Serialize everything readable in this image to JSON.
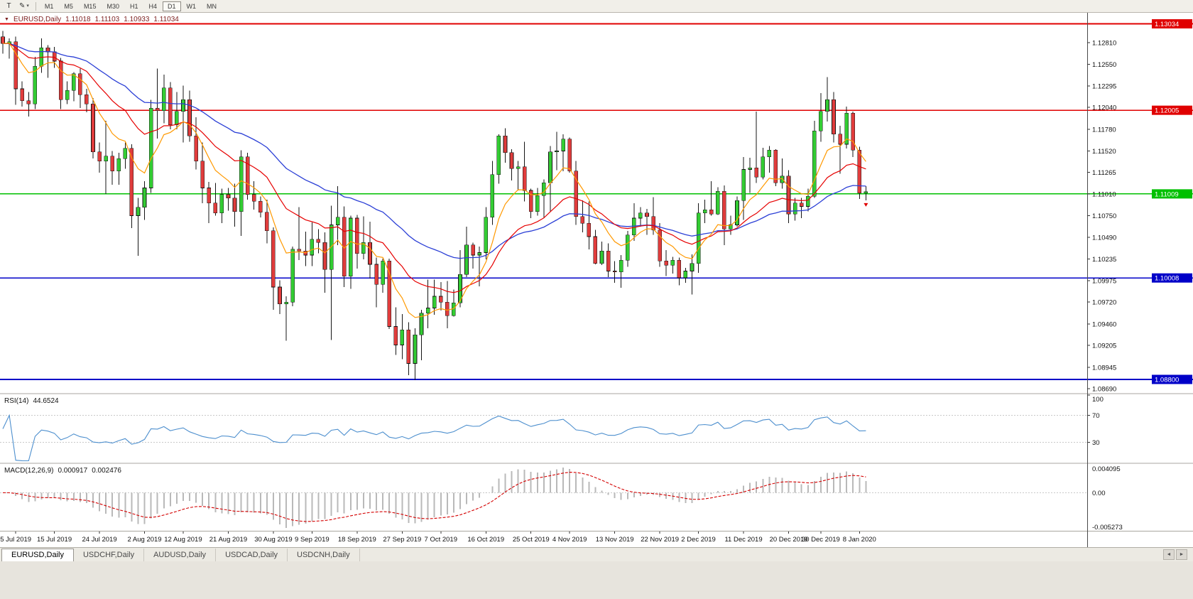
{
  "toolbar": {
    "tools": [
      {
        "name": "text-tool",
        "glyph": "T"
      },
      {
        "name": "draw-tool",
        "glyph": "✎"
      },
      {
        "name": "draw-tool-caret",
        "glyph": "▾"
      }
    ],
    "timeframes": [
      "M1",
      "M5",
      "M15",
      "M30",
      "H1",
      "H4",
      "D1",
      "W1",
      "MN"
    ],
    "active_timeframe": "D1"
  },
  "chart_data": {
    "type": "candlestick",
    "symbol": "EURUSD,Daily",
    "ohlc_display": {
      "open": "1.11018",
      "high": "1.11103",
      "low": "1.10933",
      "close": "1.11034"
    },
    "colors": {
      "up": "#33cc33",
      "down": "#e03c3c",
      "wick": "#151515",
      "ma_fast": "#ff9900",
      "ma_mid": "#e60000",
      "ma_slow": "#2b3fd6"
    },
    "ma_periods": {
      "fast": 8,
      "mid": 20,
      "slow": 40
    },
    "price_axis": {
      "top_price": 1.13157,
      "bottom_price": 1.08639,
      "ticks": [
        "1.12810",
        "1.12550",
        "1.12295",
        "1.12040",
        "1.11780",
        "1.11520",
        "1.11265",
        "1.11010",
        "1.10750",
        "1.10490",
        "1.10235",
        "1.09975",
        "1.09720",
        "1.09460",
        "1.09205",
        "1.08945",
        "1.08690"
      ]
    },
    "hlines": [
      {
        "price": 1.13034,
        "label": "1.13034",
        "color": "#e00000"
      },
      {
        "price": 1.12005,
        "label": "1.12005",
        "color": "#e00000"
      },
      {
        "price": 1.11009,
        "label": "1.11009",
        "color": "#00c000"
      },
      {
        "price": 1.10008,
        "label": "1.10008",
        "color": "#0000c8"
      },
      {
        "price": 1.088,
        "label": "1.08800",
        "color": "#0000c8"
      }
    ],
    "time_labels": [
      {
        "text": "5 Jul 2019",
        "bar": 2
      },
      {
        "text": "15 Jul 2019",
        "bar": 8
      },
      {
        "text": "24 Jul 2019",
        "bar": 15
      },
      {
        "text": "2 Aug 2019",
        "bar": 22
      },
      {
        "text": "12 Aug 2019",
        "bar": 28
      },
      {
        "text": "21 Aug 2019",
        "bar": 35
      },
      {
        "text": "30 Aug 2019",
        "bar": 42
      },
      {
        "text": "9 Sep 2019",
        "bar": 48
      },
      {
        "text": "18 Sep 2019",
        "bar": 55
      },
      {
        "text": "27 Sep 2019",
        "bar": 62
      },
      {
        "text": "7 Oct 2019",
        "bar": 68
      },
      {
        "text": "16 Oct 2019",
        "bar": 75
      },
      {
        "text": "25 Oct 2019",
        "bar": 82
      },
      {
        "text": "4 Nov 2019",
        "bar": 88
      },
      {
        "text": "13 Nov 2019",
        "bar": 95
      },
      {
        "text": "22 Nov 2019",
        "bar": 102
      },
      {
        "text": "2 Dec 2019",
        "bar": 108
      },
      {
        "text": "11 Dec 2019",
        "bar": 115
      },
      {
        "text": "20 Dec 2019",
        "bar": 122
      },
      {
        "text": "30 Dec 2019",
        "bar": 127
      },
      {
        "text": "8 Jan 2020",
        "bar": 133
      }
    ],
    "candles": [
      [
        1.1288,
        1.1295,
        1.1268,
        1.128
      ],
      [
        1.128,
        1.1286,
        1.1262,
        1.1282
      ],
      [
        1.1282,
        1.1288,
        1.1207,
        1.1226
      ],
      [
        1.1226,
        1.1235,
        1.1205,
        1.1212
      ],
      [
        1.1212,
        1.1222,
        1.1193,
        1.1208
      ],
      [
        1.1208,
        1.1264,
        1.1202,
        1.1253
      ],
      [
        1.1253,
        1.1286,
        1.1245,
        1.1275
      ],
      [
        1.1275,
        1.1278,
        1.1239,
        1.127
      ],
      [
        1.127,
        1.1276,
        1.1251,
        1.1259
      ],
      [
        1.1259,
        1.1263,
        1.1202,
        1.1213
      ],
      [
        1.1213,
        1.1235,
        1.1208,
        1.1224
      ],
      [
        1.1224,
        1.1246,
        1.1211,
        1.1244
      ],
      [
        1.1244,
        1.125,
        1.1203,
        1.1219
      ],
      [
        1.1219,
        1.1226,
        1.1198,
        1.1208
      ],
      [
        1.1208,
        1.1215,
        1.1143,
        1.1151
      ],
      [
        1.1151,
        1.1162,
        1.1126,
        1.114
      ],
      [
        1.114,
        1.1188,
        1.1101,
        1.1146
      ],
      [
        1.1146,
        1.1152,
        1.1112,
        1.1128
      ],
      [
        1.1128,
        1.115,
        1.1112,
        1.1143
      ],
      [
        1.1143,
        1.1162,
        1.1131,
        1.1155
      ],
      [
        1.1155,
        1.116,
        1.106,
        1.1075
      ],
      [
        1.1075,
        1.1096,
        1.1027,
        1.1085
      ],
      [
        1.1085,
        1.1116,
        1.107,
        1.1108
      ],
      [
        1.1108,
        1.1213,
        1.1102,
        1.1203
      ],
      [
        1.1203,
        1.125,
        1.1167,
        1.12
      ],
      [
        1.12,
        1.1243,
        1.1185,
        1.1227
      ],
      [
        1.1227,
        1.1234,
        1.1178,
        1.1183
      ],
      [
        1.1183,
        1.1222,
        1.1178,
        1.1199
      ],
      [
        1.1199,
        1.123,
        1.1162,
        1.1213
      ],
      [
        1.1213,
        1.1224,
        1.1163,
        1.117
      ],
      [
        1.117,
        1.1192,
        1.113,
        1.114
      ],
      [
        1.114,
        1.1162,
        1.109,
        1.1108
      ],
      [
        1.1108,
        1.1115,
        1.1066,
        1.109
      ],
      [
        1.109,
        1.1114,
        1.1075,
        1.1078
      ],
      [
        1.1078,
        1.1107,
        1.1066,
        1.11
      ],
      [
        1.11,
        1.1108,
        1.1081,
        1.1096
      ],
      [
        1.1096,
        1.1113,
        1.1062,
        1.108
      ],
      [
        1.108,
        1.1153,
        1.1051,
        1.1145
      ],
      [
        1.1145,
        1.115,
        1.1094,
        1.11
      ],
      [
        1.11,
        1.1116,
        1.1082,
        1.1092
      ],
      [
        1.1092,
        1.1098,
        1.1073,
        1.1079
      ],
      [
        1.1079,
        1.1094,
        1.1042,
        1.1057
      ],
      [
        1.1057,
        1.1061,
        1.0963,
        1.099
      ],
      [
        1.099,
        1.0998,
        1.0958,
        1.097
      ],
      [
        1.097,
        1.0979,
        1.0926,
        1.0972
      ],
      [
        1.0972,
        1.1038,
        1.0967,
        1.1035
      ],
      [
        1.1035,
        1.1085,
        1.1022,
        1.1033
      ],
      [
        1.1033,
        1.1056,
        1.1015,
        1.1028
      ],
      [
        1.1028,
        1.1067,
        1.1015,
        1.1047
      ],
      [
        1.1047,
        1.1059,
        1.103,
        1.1043
      ],
      [
        1.1043,
        1.1055,
        1.0983,
        1.1011
      ],
      [
        1.1011,
        1.1087,
        1.0927,
        1.1064
      ],
      [
        1.1064,
        1.111,
        1.104,
        1.1073
      ],
      [
        1.1073,
        1.1086,
        1.099,
        1.1003
      ],
      [
        1.1003,
        1.1075,
        1.0988,
        1.1072
      ],
      [
        1.1072,
        1.1076,
        1.1012,
        1.103
      ],
      [
        1.103,
        1.1074,
        1.1023,
        1.1043
      ],
      [
        1.1043,
        1.1068,
        1.1,
        1.1017
      ],
      [
        1.1017,
        1.1025,
        1.0966,
        1.0993
      ],
      [
        1.0993,
        1.1024,
        1.0983,
        1.1021
      ],
      [
        1.1021,
        1.1024,
        1.094,
        1.0943
      ],
      [
        1.0943,
        1.0966,
        1.0909,
        1.0921
      ],
      [
        1.0921,
        1.0958,
        1.0904,
        1.0939
      ],
      [
        1.0939,
        1.0948,
        1.0885,
        1.0899
      ],
      [
        1.0899,
        1.0941,
        1.0879,
        1.0933
      ],
      [
        1.0933,
        1.0963,
        1.0903,
        1.0959
      ],
      [
        1.0959,
        1.0999,
        1.0941,
        1.0965
      ],
      [
        1.0965,
        1.0999,
        1.0957,
        1.0979
      ],
      [
        1.0979,
        1.0996,
        1.0962,
        1.0972
      ],
      [
        1.0972,
        1.0997,
        1.0941,
        1.0956
      ],
      [
        1.0956,
        1.0987,
        1.0955,
        1.0971
      ],
      [
        1.0971,
        1.1034,
        1.0966,
        1.1005
      ],
      [
        1.1005,
        1.1062,
        1.1002,
        1.104
      ],
      [
        1.104,
        1.1043,
        1.1012,
        1.1028
      ],
      [
        1.1028,
        1.1038,
        1.0991,
        1.1031
      ],
      [
        1.1031,
        1.1085,
        1.1023,
        1.1073
      ],
      [
        1.1073,
        1.114,
        1.1064,
        1.1124
      ],
      [
        1.1124,
        1.1172,
        1.1113,
        1.117
      ],
      [
        1.117,
        1.1179,
        1.1138,
        1.115
      ],
      [
        1.115,
        1.1154,
        1.1117,
        1.1131
      ],
      [
        1.1131,
        1.114,
        1.1105,
        1.1133
      ],
      [
        1.1133,
        1.1163,
        1.1092,
        1.1105
      ],
      [
        1.1105,
        1.1107,
        1.1072,
        1.108
      ],
      [
        1.108,
        1.1108,
        1.1075,
        1.1099
      ],
      [
        1.1099,
        1.1118,
        1.1073,
        1.1114
      ],
      [
        1.1114,
        1.1158,
        1.108,
        1.1151
      ],
      [
        1.1151,
        1.1175,
        1.1129,
        1.1152
      ],
      [
        1.1152,
        1.1172,
        1.1128,
        1.1166
      ],
      [
        1.1166,
        1.1168,
        1.1126,
        1.1128
      ],
      [
        1.1128,
        1.114,
        1.1064,
        1.1074
      ],
      [
        1.1074,
        1.1093,
        1.1055,
        1.1066
      ],
      [
        1.1066,
        1.1092,
        1.1035,
        1.105
      ],
      [
        1.105,
        1.1058,
        1.1017,
        1.1018
      ],
      [
        1.1018,
        1.1044,
        1.1016,
        1.1033
      ],
      [
        1.1033,
        1.1042,
        1.1002,
        1.1009
      ],
      [
        1.1009,
        1.1021,
        1.0995,
        1.1008
      ],
      [
        1.1008,
        1.1028,
        1.0989,
        1.1022
      ],
      [
        1.1022,
        1.1057,
        1.1014,
        1.1052
      ],
      [
        1.1052,
        1.109,
        1.1045,
        1.1072
      ],
      [
        1.1072,
        1.1085,
        1.1062,
        1.1078
      ],
      [
        1.1078,
        1.1083,
        1.1052,
        1.1074
      ],
      [
        1.1074,
        1.1097,
        1.1052,
        1.1058
      ],
      [
        1.1058,
        1.1066,
        1.1014,
        1.1021
      ],
      [
        1.1021,
        1.1034,
        1.1003,
        1.1016
      ],
      [
        1.1016,
        1.1026,
        1.1006,
        1.1022
      ],
      [
        1.1022,
        1.1025,
        1.0992,
        1.1001
      ],
      [
        1.1001,
        1.1013,
        1.0995,
        1.1009
      ],
      [
        1.1009,
        1.1029,
        1.0981,
        1.1018
      ],
      [
        1.1018,
        1.109,
        1.1007,
        1.1078
      ],
      [
        1.1078,
        1.1094,
        1.1066,
        1.1082
      ],
      [
        1.1082,
        1.1116,
        1.1075,
        1.1077
      ],
      [
        1.1077,
        1.1109,
        1.1076,
        1.1104
      ],
      [
        1.1104,
        1.1111,
        1.104,
        1.1059
      ],
      [
        1.1059,
        1.1075,
        1.1052,
        1.1064
      ],
      [
        1.1064,
        1.1098,
        1.1062,
        1.1093
      ],
      [
        1.1093,
        1.1145,
        1.107,
        1.113
      ],
      [
        1.113,
        1.1144,
        1.1102,
        1.1132
      ],
      [
        1.1132,
        1.1199,
        1.1114,
        1.1121
      ],
      [
        1.1121,
        1.1156,
        1.1118,
        1.1145
      ],
      [
        1.1145,
        1.1158,
        1.1126,
        1.1153
      ],
      [
        1.1153,
        1.1154,
        1.111,
        1.1114
      ],
      [
        1.1114,
        1.1143,
        1.1107,
        1.1122
      ],
      [
        1.1122,
        1.1129,
        1.1066,
        1.1077
      ],
      [
        1.1077,
        1.1096,
        1.1069,
        1.109
      ],
      [
        1.109,
        1.1096,
        1.1072,
        1.1086
      ],
      [
        1.1086,
        1.1107,
        1.108,
        1.1098
      ],
      [
        1.1098,
        1.1188,
        1.1096,
        1.1176
      ],
      [
        1.1176,
        1.1221,
        1.1163,
        1.1199
      ],
      [
        1.1199,
        1.124,
        1.1187,
        1.1213
      ],
      [
        1.1213,
        1.1222,
        1.1162,
        1.1172
      ],
      [
        1.1172,
        1.1182,
        1.1125,
        1.116
      ],
      [
        1.116,
        1.1205,
        1.1155,
        1.1197
      ],
      [
        1.1197,
        1.1199,
        1.1145,
        1.1153
      ],
      [
        1.1153,
        1.1157,
        1.1095,
        1.1102
      ],
      [
        1.11018,
        1.11103,
        1.10933,
        1.11034
      ]
    ],
    "indicators": {
      "rsi": {
        "label": "RSI(14)",
        "value": "44.6524",
        "period": 14,
        "levels": [
          70,
          30
        ],
        "scale_labels": [
          "100",
          "70",
          "30"
        ],
        "color": "#4d8fce",
        "range": [
          0,
          100
        ]
      },
      "macd": {
        "label": "MACD(12,26,9)",
        "value_main": "0.000917",
        "value_signal": "0.002476",
        "fast": 12,
        "slow": 26,
        "signal": 9,
        "scale_top": "0.004095",
        "scale_zero": "0.00",
        "scale_bottom": "-0.005273",
        "histogram_color": "#b9b9b9",
        "signal_color": "#d40000"
      }
    }
  },
  "tabs": {
    "items": [
      "EURUSD,Daily",
      "USDCHF,Daily",
      "AUDUSD,Daily",
      "USDCAD,Daily",
      "USDCNH,Daily"
    ],
    "active_index": 0
  }
}
